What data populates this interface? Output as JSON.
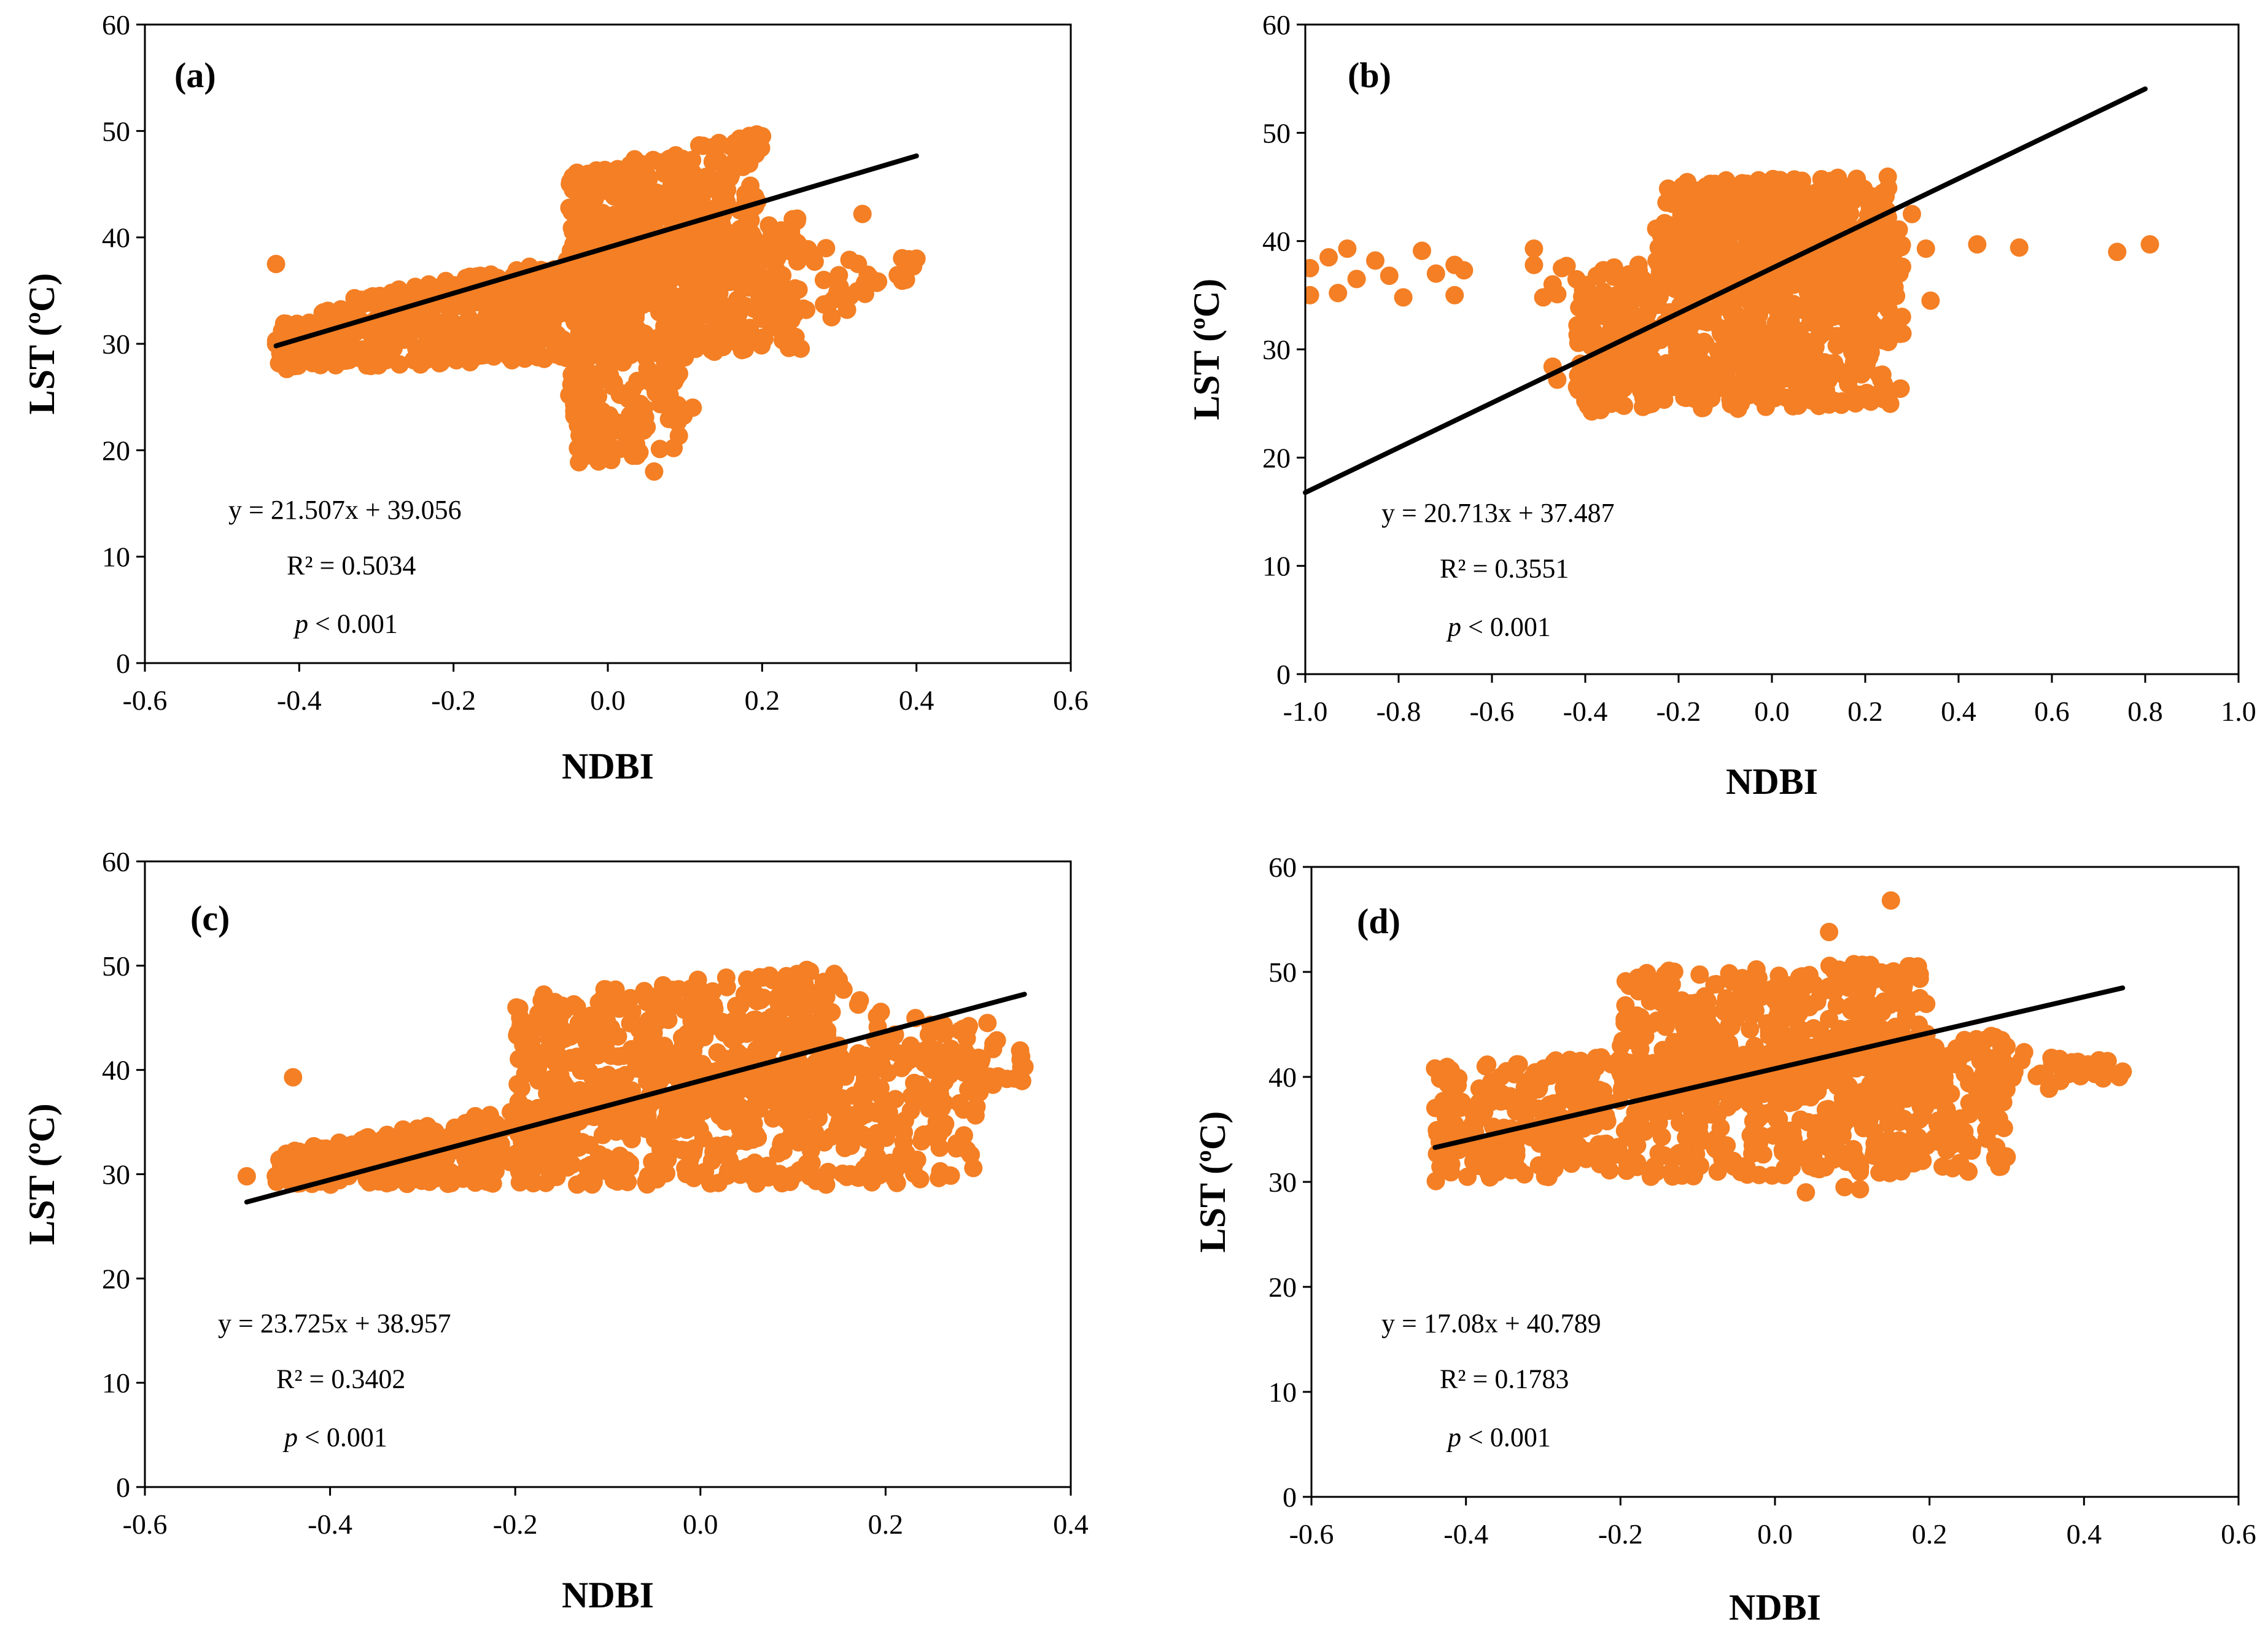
{
  "colors": {
    "points": "#F47F24",
    "trendline": "#000000",
    "axis": "#000000"
  },
  "chart_data": [
    {
      "type": "scatter",
      "panel_label": "(a)",
      "xlabel": "NDBI",
      "ylabel": "LST (ºC)",
      "xlim": [
        -0.6,
        0.6
      ],
      "ylim": [
        0,
        60
      ],
      "xticks": [
        "-0.6",
        "-0.4",
        "-0.2",
        "0.0",
        "0.2",
        "0.4",
        "0.6"
      ],
      "yticks": [
        "0",
        "10",
        "20",
        "30",
        "40",
        "50",
        "60"
      ],
      "equation": "y = 21.507x + 39.056",
      "r2": "R² = 0.5034",
      "p_symbol": "p",
      "p_value": " < 0.001",
      "trendline": {
        "slope": 21.507,
        "intercept": 39.056,
        "x_range": [
          -0.43,
          0.4
        ]
      },
      "clusters": [
        {
          "x": [
            -0.43,
            0.25
          ],
          "y_low": [
            27.5,
            29.5
          ],
          "y_high": [
            33.0,
            42.0
          ],
          "n": 750
        },
        {
          "x": [
            -0.05,
            0.2
          ],
          "y_low": [
            33.0,
            35.0
          ],
          "y_high": [
            46.0,
            50.0
          ],
          "n": 450
        },
        {
          "x": [
            -0.05,
            0.1
          ],
          "y_low": [
            18.5,
            20.0
          ],
          "y_high": [
            30.0,
            30.0
          ],
          "n": 130
        },
        {
          "x": [
            0.2,
            0.4
          ],
          "y_low": [
            32.0,
            36.0
          ],
          "y_high": [
            40.0,
            38.0
          ],
          "n": 40
        }
      ],
      "outliers": [
        [
          -0.43,
          37.5
        ],
        [
          0.33,
          42.2
        ],
        [
          0.4,
          38
        ],
        [
          0.29,
          32.5
        ],
        [
          0.31,
          33.2
        ],
        [
          0.11,
          24
        ],
        [
          0.06,
          18
        ],
        [
          0.28,
          36
        ]
      ]
    },
    {
      "type": "scatter",
      "panel_label": "(b)",
      "xlabel": "NDBI",
      "ylabel": "LST (ºC)",
      "xlim": [
        -1.0,
        1.0
      ],
      "ylim": [
        0,
        60
      ],
      "xticks": [
        "-1.0",
        "-0.8",
        "-0.6",
        "-0.4",
        "-0.2",
        "0.0",
        "0.2",
        "0.4",
        "0.6",
        "0.8",
        "1.0"
      ],
      "yticks": [
        "0",
        "10",
        "20",
        "30",
        "40",
        "50",
        "60"
      ],
      "equation": "y = 20.713x + 37.487",
      "r2": "R² = 0.3551",
      "p_symbol": "p",
      "p_value": " < 0.001",
      "trendline": {
        "slope": 20.713,
        "intercept": 37.487,
        "x_range": [
          -1.0,
          0.8
        ]
      },
      "clusters": [
        {
          "x": [
            -0.42,
            0.28
          ],
          "y_low": [
            24.0,
            25.0
          ],
          "y_high": [
            37.0,
            42.0
          ],
          "n": 750
        },
        {
          "x": [
            -0.25,
            0.25
          ],
          "y_low": [
            36.0,
            36.0
          ],
          "y_high": [
            45.5,
            46.0
          ],
          "n": 450
        }
      ],
      "outliers": [
        [
          -0.99,
          37.5
        ],
        [
          -0.99,
          35
        ],
        [
          -0.95,
          38.5
        ],
        [
          -0.93,
          35.2
        ],
        [
          -0.91,
          39.3
        ],
        [
          -0.89,
          36.5
        ],
        [
          -0.85,
          38.2
        ],
        [
          -0.82,
          36.8
        ],
        [
          -0.79,
          34.8
        ],
        [
          -0.75,
          39.1
        ],
        [
          -0.72,
          37
        ],
        [
          -0.68,
          35
        ],
        [
          -0.68,
          37.8
        ],
        [
          -0.66,
          37.3
        ],
        [
          -0.51,
          39.3
        ],
        [
          -0.51,
          37.8
        ],
        [
          -0.49,
          34.8
        ],
        [
          -0.47,
          36
        ],
        [
          -0.45,
          37.5
        ],
        [
          -0.46,
          35.1
        ],
        [
          -0.44,
          37.7
        ],
        [
          -0.46,
          27.2
        ],
        [
          -0.47,
          28.4
        ],
        [
          0.3,
          42.5
        ],
        [
          0.33,
          39.3
        ],
        [
          0.34,
          34.5
        ],
        [
          0.44,
          39.7
        ],
        [
          0.53,
          39.4
        ],
        [
          0.74,
          39
        ],
        [
          0.81,
          39.7
        ]
      ]
    },
    {
      "type": "scatter",
      "panel_label": "(c)",
      "xlabel": "NDBI",
      "ylabel": "LST (ºC)",
      "xlim": [
        -0.6,
        0.4
      ],
      "ylim": [
        0,
        60
      ],
      "xticks": [
        "-0.6",
        "-0.4",
        "-0.2",
        "0.0",
        "0.2",
        "0.4"
      ],
      "yticks": [
        "0",
        "10",
        "20",
        "30",
        "40",
        "50",
        "60"
      ],
      "equation": "y = 23.725x + 38.957",
      "r2": "R² = 0.3402",
      "p_symbol": "p",
      "p_value": " < 0.001",
      "trendline": {
        "slope": 23.725,
        "intercept": 38.957,
        "x_range": [
          -0.49,
          0.35
        ]
      },
      "clusters": [
        {
          "x": [
            -0.46,
            0.3
          ],
          "y_low": [
            29.0,
            29.0
          ],
          "y_high": [
            32.0,
            45.0
          ],
          "n": 800
        },
        {
          "x": [
            -0.2,
            0.15
          ],
          "y_low": [
            35.0,
            37.0
          ],
          "y_high": [
            47.0,
            50.0
          ],
          "n": 450
        },
        {
          "x": [
            0.15,
            0.35
          ],
          "y_low": [
            34.0,
            38.0
          ],
          "y_high": [
            48.0,
            42.0
          ],
          "n": 60
        }
      ],
      "outliers": [
        [
          -0.49,
          29.8
        ],
        [
          -0.44,
          39.3
        ],
        [
          0.35,
          40.3
        ],
        [
          0.31,
          44.5
        ],
        [
          0.29,
          44.2
        ],
        [
          0.28,
          36.8
        ],
        [
          0.25,
          34
        ]
      ]
    },
    {
      "type": "scatter",
      "panel_label": "(d)",
      "xlabel": "NDBI",
      "ylabel": "LST (ºC)",
      "xlim": [
        -0.6,
        0.6
      ],
      "ylim": [
        0,
        60
      ],
      "xticks": [
        "-0.6",
        "-0.4",
        "-0.2",
        "0.0",
        "0.2",
        "0.4",
        "0.6"
      ],
      "yticks": [
        "0",
        "10",
        "20",
        "30",
        "40",
        "50",
        "60"
      ],
      "equation": "y = 17.08x  + 40.789",
      "r2": "R² = 0.1783",
      "p_symbol": "p",
      "p_value": " < 0.001",
      "trendline": {
        "slope": 17.08,
        "intercept": 40.789,
        "x_range": [
          -0.44,
          0.45
        ]
      },
      "clusters": [
        {
          "x": [
            -0.44,
            0.3
          ],
          "y_low": [
            30.0,
            31.0
          ],
          "y_high": [
            41.0,
            44.0
          ],
          "n": 750
        },
        {
          "x": [
            -0.2,
            0.2
          ],
          "y_low": [
            38.0,
            38.0
          ],
          "y_high": [
            50.0,
            51.0
          ],
          "n": 450
        },
        {
          "x": [
            0.25,
            0.45
          ],
          "y_low": [
            37.0,
            40.0
          ],
          "y_high": [
            43.0,
            41.5
          ],
          "n": 40
        }
      ],
      "outliers": [
        [
          0.15,
          56.8
        ],
        [
          0.07,
          53.8
        ],
        [
          0.04,
          29
        ],
        [
          0.09,
          29.5
        ],
        [
          0.11,
          29.3
        ],
        [
          0.42,
          41.2
        ],
        [
          0.45,
          40.5
        ],
        [
          0.37,
          41.5
        ],
        [
          0.35,
          40
        ],
        [
          0.29,
          36
        ],
        [
          -0.44,
          40.8
        ],
        [
          0.28,
          35.2
        ]
      ]
    }
  ]
}
